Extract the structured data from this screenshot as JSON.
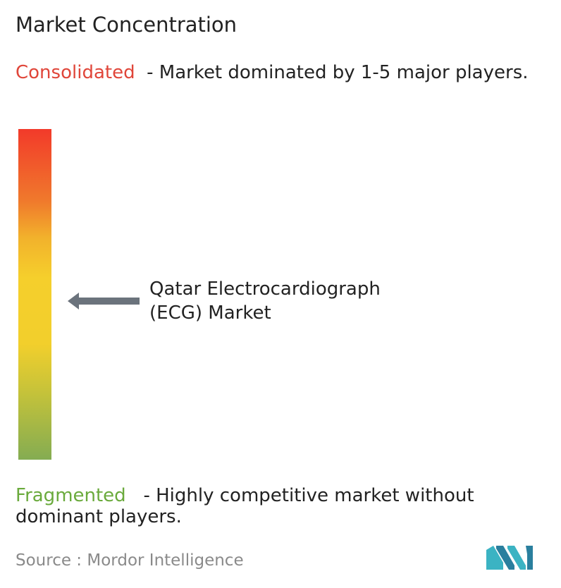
{
  "title": "Market Concentration",
  "consolidated": {
    "label": "Consolidated",
    "description": "- Market dominated by 1-5 major players."
  },
  "market": {
    "label": "Qatar Electrocardiograph (ECG) Market"
  },
  "fragmented": {
    "label": "Fragmented",
    "description": "- Highly competitive market without dominant players."
  },
  "source": {
    "label": "Source :",
    "name": "Mordor Intelligence"
  }
}
